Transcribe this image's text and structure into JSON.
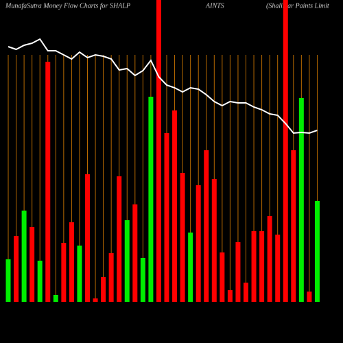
{
  "chart_data": {
    "type": "bar",
    "title_parts": [
      "MunafaSutra  Money Flow  Charts for SHALP",
      "AINTS",
      "(Shalimar Paints Limit"
    ],
    "values": [
      62,
      96,
      133,
      109,
      60,
      350,
      10,
      86,
      116,
      82,
      186,
      5,
      36,
      71,
      183,
      119,
      142,
      64,
      299,
      440,
      246,
      279,
      188,
      101,
      170,
      221,
      179,
      72,
      17,
      87,
      28,
      103,
      103,
      125,
      98,
      440,
      221,
      297,
      15,
      147
    ],
    "colors": [
      "#00ee00",
      "#ff0000",
      "#00ee00",
      "#ff0000",
      "#00ee00",
      "#ff0000",
      "#00ee00",
      "#ff0000",
      "#ff0000",
      "#00ee00",
      "#ff0000",
      "#ff0000",
      "#ff0000",
      "#ff0000",
      "#ff0000",
      "#00ee00",
      "#ff0000",
      "#00ee00",
      "#00ee00",
      "#ff0000",
      "#ff0000",
      "#ff0000",
      "#ff0000",
      "#00ee00",
      "#ff0000",
      "#ff0000",
      "#ff0000",
      "#ff0000",
      "#ff0000",
      "#ff0000",
      "#ff0000",
      "#ff0000",
      "#ff0000",
      "#ff0000",
      "#ff0000",
      "#ff0000",
      "#ff0000",
      "#00ee00",
      "#ff0000",
      "#00ee00"
    ],
    "line": {
      "color": "#ffffff",
      "values": [
        372,
        368,
        374,
        377,
        383,
        366,
        366,
        360,
        354,
        364,
        356,
        360,
        358,
        354,
        338,
        340,
        330,
        337,
        352,
        328,
        316,
        312,
        306,
        312,
        310,
        302,
        292,
        286,
        292,
        290,
        290,
        284,
        280,
        274,
        272,
        260,
        246,
        247,
        246,
        250
      ]
    },
    "ylim": [
      0,
      440
    ],
    "grid": true,
    "grid_color": "#b86a00"
  }
}
